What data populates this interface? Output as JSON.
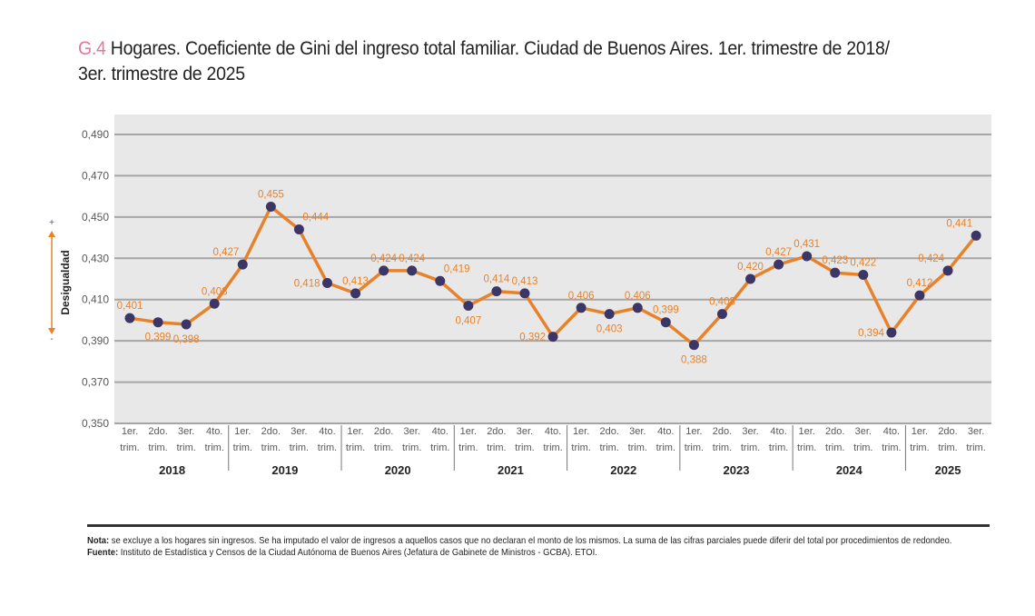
{
  "figure": {
    "code": "G.4",
    "title": "Hogares. Coeficiente de Gini del ingreso total familiar. Ciudad de Buenos Aires. 1er. trimestre de 2018/ 3er. trimestre de 2025",
    "title_line1": "Hogares. Coeficiente de Gini del ingreso total familiar. Ciudad de Buenos Aires. 1er. trimestre de 2018/",
    "title_line2": "3er. trimestre de 2025",
    "note_label": "Nota:",
    "note_text": " se excluye a los hogares sin ingresos. Se ha imputado el valor de ingresos a aquellos casos que no declaran el monto de los mismos. La suma de las cifras parciales puede diferir del total por procedimientos de redondeo.",
    "source_label": "Fuente:",
    "source_text": " Instituto de Estadística y Censos de la Ciudad Autónoma de Buenos Aires (Jefatura de Gabinete de Ministros - GCBA). ETOI."
  },
  "colors": {
    "title_code": "#e07aa0",
    "plot_bg": "#e8e8e8",
    "gridline": "#a6a6a6",
    "line": "#e8822a",
    "marker": "#3b3666",
    "data_label": "#e8822a",
    "axis_text": "#595959"
  },
  "chart_data": {
    "type": "line",
    "title": "Hogares. Coeficiente de Gini del ingreso total familiar. Ciudad de Buenos Aires. 1er. trimestre de 2018/ 3er. trimestre de 2025",
    "xlabel": "",
    "ylabel": "Desigualdad",
    "ylabel_plus": "+",
    "ylabel_minus": "-",
    "ylim": [
      0.35,
      0.49
    ],
    "yticks": [
      0.35,
      0.37,
      0.39,
      0.41,
      0.43,
      0.45,
      0.47,
      0.49
    ],
    "ytick_labels": [
      "0,350",
      "0,370",
      "0,390",
      "0,410",
      "0,430",
      "0,450",
      "0,470",
      "0,490"
    ],
    "grid": true,
    "legend": "none",
    "quarter_labels_line1": [
      "1er.",
      "2do.",
      "3er.",
      "4to."
    ],
    "quarter_labels_line2": [
      "trim.",
      "trim.",
      "trim.",
      "trim."
    ],
    "years": [
      {
        "year": "2018",
        "quarters": 4
      },
      {
        "year": "2019",
        "quarters": 4
      },
      {
        "year": "2020",
        "quarters": 4
      },
      {
        "year": "2021",
        "quarters": 4
      },
      {
        "year": "2022",
        "quarters": 4
      },
      {
        "year": "2023",
        "quarters": 4
      },
      {
        "year": "2024",
        "quarters": 4
      },
      {
        "year": "2025",
        "quarters": 3
      }
    ],
    "series": [
      {
        "name": "Coeficiente de Gini",
        "values": [
          0.401,
          0.399,
          0.398,
          0.408,
          0.427,
          0.455,
          0.444,
          0.418,
          0.413,
          0.424,
          0.424,
          0.419,
          0.407,
          0.414,
          0.413,
          0.392,
          0.406,
          0.403,
          0.406,
          0.399,
          0.388,
          0.403,
          0.42,
          0.427,
          0.431,
          0.423,
          0.422,
          0.394,
          0.412,
          0.424,
          0.441
        ],
        "labels": [
          "0,401",
          "0,399",
          "0,398",
          "0,408",
          "0,427",
          "0,455",
          "0,444",
          "0,418",
          "0,413",
          "0,424",
          "0,424",
          "0,419",
          "0,407",
          "0,414",
          "0,413",
          "0,392",
          "0,406",
          "0,403",
          "0,406",
          "0,399",
          "0,388",
          "0,403",
          "0,420",
          "0,427",
          "0,431",
          "0,423",
          "0,422",
          "0,394",
          "0,412",
          "0,424",
          "0,441"
        ],
        "label_pos": [
          "above",
          "below",
          "below",
          "above",
          "above-left",
          "above",
          "above-right",
          "left",
          "above",
          "above",
          "above",
          "above-right",
          "below",
          "above",
          "above",
          "left",
          "above",
          "below",
          "above",
          "above",
          "below",
          "above",
          "above",
          "above",
          "above",
          "above",
          "above",
          "left",
          "above",
          "above-left",
          "above-left"
        ]
      }
    ]
  }
}
